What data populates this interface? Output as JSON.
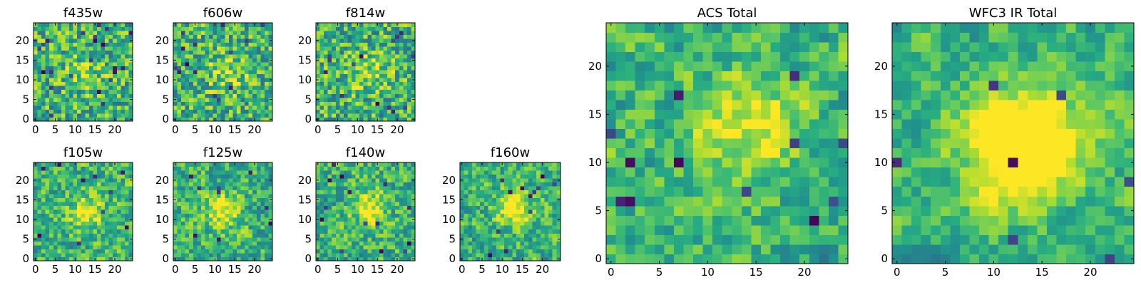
{
  "chart_data": [
    {
      "type": "heatmap",
      "title": "f435w",
      "colormap": "viridis",
      "grid": false,
      "nx": 25,
      "ny": 25,
      "xlim": [
        0,
        25
      ],
      "ylim": [
        0,
        25
      ],
      "xticks": [
        0,
        5,
        10,
        15,
        20
      ],
      "yticks": [
        0,
        5,
        10,
        15,
        20
      ],
      "seed": 11,
      "noise": 0.95,
      "peak": [
        13,
        12,
        0.15,
        3.5
      ],
      "holes": 22
    },
    {
      "type": "heatmap",
      "title": "f606w",
      "colormap": "viridis",
      "grid": false,
      "nx": 25,
      "ny": 25,
      "xlim": [
        0,
        25
      ],
      "ylim": [
        0,
        25
      ],
      "xticks": [
        0,
        5,
        10,
        15,
        20
      ],
      "yticks": [
        0,
        5,
        10,
        15,
        20
      ],
      "seed": 23,
      "noise": 0.95,
      "peak": [
        13,
        12,
        0.2,
        3.5
      ],
      "holes": 14
    },
    {
      "type": "heatmap",
      "title": "f814w",
      "colormap": "viridis",
      "grid": false,
      "nx": 25,
      "ny": 25,
      "xlim": [
        0,
        25
      ],
      "ylim": [
        0,
        25
      ],
      "xticks": [
        0,
        5,
        10,
        15,
        20
      ],
      "yticks": [
        0,
        5,
        10,
        15,
        20
      ],
      "seed": 37,
      "noise": 0.95,
      "peak": [
        13,
        12,
        0.2,
        3.5
      ],
      "holes": 14
    },
    {
      "type": "heatmap",
      "title": "f105w",
      "colormap": "viridis",
      "grid": false,
      "nx": 25,
      "ny": 25,
      "xlim": [
        0,
        25
      ],
      "ylim": [
        0,
        25
      ],
      "xticks": [
        0,
        5,
        10,
        15,
        20
      ],
      "yticks": [
        0,
        5,
        10,
        15,
        20
      ],
      "seed": 41,
      "noise": 0.7,
      "peak": [
        13,
        12,
        0.35,
        3.0
      ],
      "holes": 10
    },
    {
      "type": "heatmap",
      "title": "f125w",
      "colormap": "viridis",
      "grid": false,
      "nx": 25,
      "ny": 25,
      "xlim": [
        0,
        25
      ],
      "ylim": [
        0,
        25
      ],
      "xticks": [
        0,
        5,
        10,
        15,
        20
      ],
      "yticks": [
        0,
        5,
        10,
        15,
        20
      ],
      "seed": 53,
      "noise": 0.7,
      "peak": [
        12,
        12,
        0.35,
        3.0
      ],
      "holes": 9
    },
    {
      "type": "heatmap",
      "title": "f140w",
      "colormap": "viridis",
      "grid": false,
      "nx": 25,
      "ny": 25,
      "xlim": [
        0,
        25
      ],
      "ylim": [
        0,
        25
      ],
      "xticks": [
        0,
        5,
        10,
        15,
        20
      ],
      "yticks": [
        0,
        5,
        10,
        15,
        20
      ],
      "seed": 67,
      "noise": 0.7,
      "peak": [
        13,
        13,
        0.35,
        3.0
      ],
      "holes": 14
    },
    {
      "type": "heatmap",
      "title": "f160w",
      "colormap": "viridis",
      "grid": false,
      "nx": 25,
      "ny": 25,
      "xlim": [
        0,
        25
      ],
      "ylim": [
        0,
        25
      ],
      "xticks": [
        0,
        5,
        10,
        15,
        20
      ],
      "yticks": [
        0,
        5,
        10,
        15,
        20
      ],
      "seed": 79,
      "noise": 0.65,
      "peak": [
        13,
        13,
        0.45,
        3.0
      ],
      "holes": 12
    },
    {
      "type": "heatmap",
      "title": "ACS Total",
      "colormap": "viridis",
      "grid": false,
      "nx": 25,
      "ny": 25,
      "xlim": [
        0,
        25
      ],
      "ylim": [
        0,
        25
      ],
      "xticks": [
        0,
        5,
        10,
        15,
        20
      ],
      "yticks": [
        0,
        5,
        10,
        15,
        20
      ],
      "seed": 83,
      "noise": 0.55,
      "peak": [
        14,
        13,
        0.35,
        4.0
      ],
      "holes": 12
    },
    {
      "type": "heatmap",
      "title": "WFC3 IR Total",
      "colormap": "viridis",
      "grid": false,
      "nx": 25,
      "ny": 25,
      "xlim": [
        0,
        25
      ],
      "ylim": [
        0,
        25
      ],
      "xticks": [
        0,
        5,
        10,
        15,
        20
      ],
      "yticks": [
        0,
        5,
        10,
        15,
        20
      ],
      "seed": 97,
      "noise": 0.4,
      "peak": [
        13,
        12,
        0.65,
        4.0
      ],
      "holes": 7
    }
  ]
}
